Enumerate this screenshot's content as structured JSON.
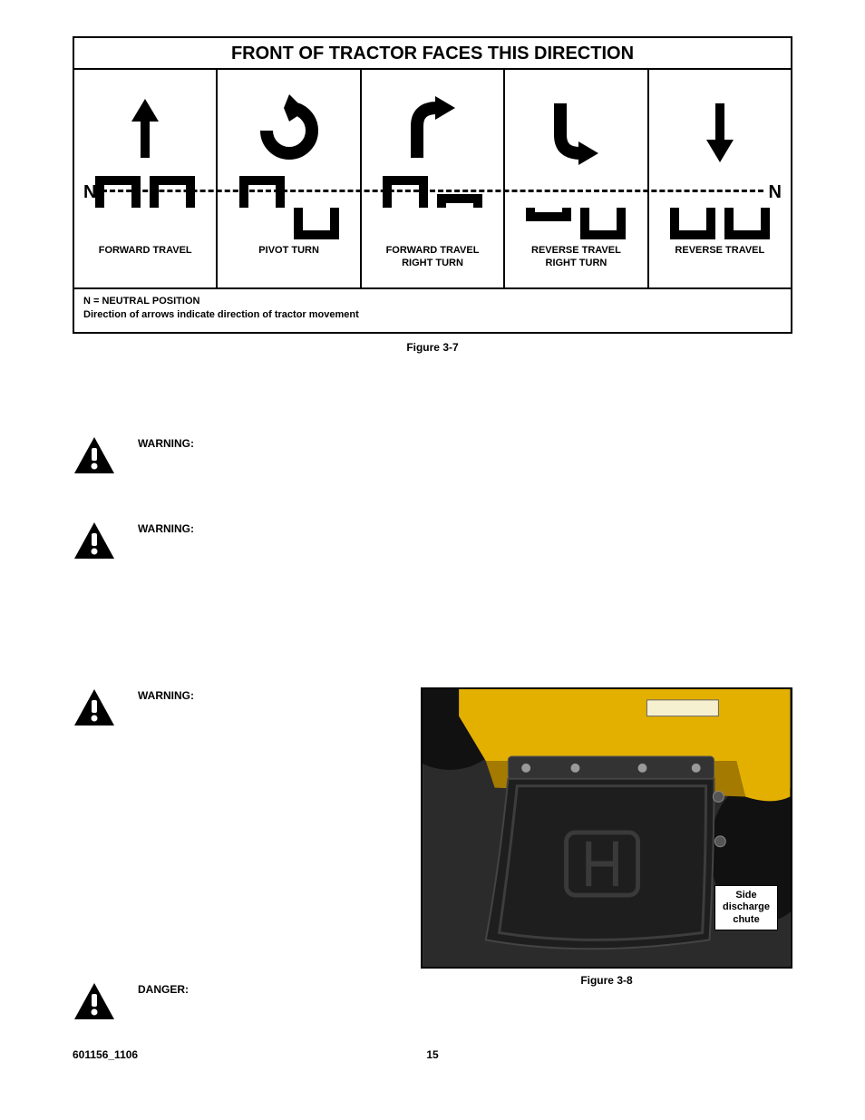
{
  "diagram": {
    "title": "FRONT OF TRACTOR FACES THIS DIRECTION",
    "neutral_label_left": "N",
    "neutral_label_right": "N",
    "cells": [
      {
        "label": "FORWARD TRAVEL"
      },
      {
        "label": "PIVOT TURN"
      },
      {
        "label": "FORWARD TRAVEL\nRIGHT TURN"
      },
      {
        "label": "REVERSE TRAVEL\nRIGHT TURN"
      },
      {
        "label": "REVERSE TRAVEL"
      }
    ],
    "footer_line1": "N = NEUTRAL POSITION",
    "footer_line2": "Direction of arrows indicate direction of tractor movement",
    "caption": "Figure 3-7",
    "stroke": "#000000",
    "fill": "#000000"
  },
  "warnings": [
    {
      "label": "WARNING:"
    },
    {
      "label": "WARNING:"
    },
    {
      "label": "WARNING:"
    }
  ],
  "danger": {
    "label": "DANGER:"
  },
  "photo": {
    "callout": "Side\ndischarge\nchute",
    "caption": "Figure 3-8",
    "colors": {
      "bg_dark": "#2b2b2b",
      "body_yellow": "#e3b000",
      "body_yellow_dark": "#a47a00",
      "chute_dark": "#1e1e1e",
      "chute_mid": "#333333",
      "bolt": "#9a9a9a",
      "tire": "#111111"
    }
  },
  "footer": {
    "doc_num": "601156_1106",
    "page_num": "15"
  }
}
